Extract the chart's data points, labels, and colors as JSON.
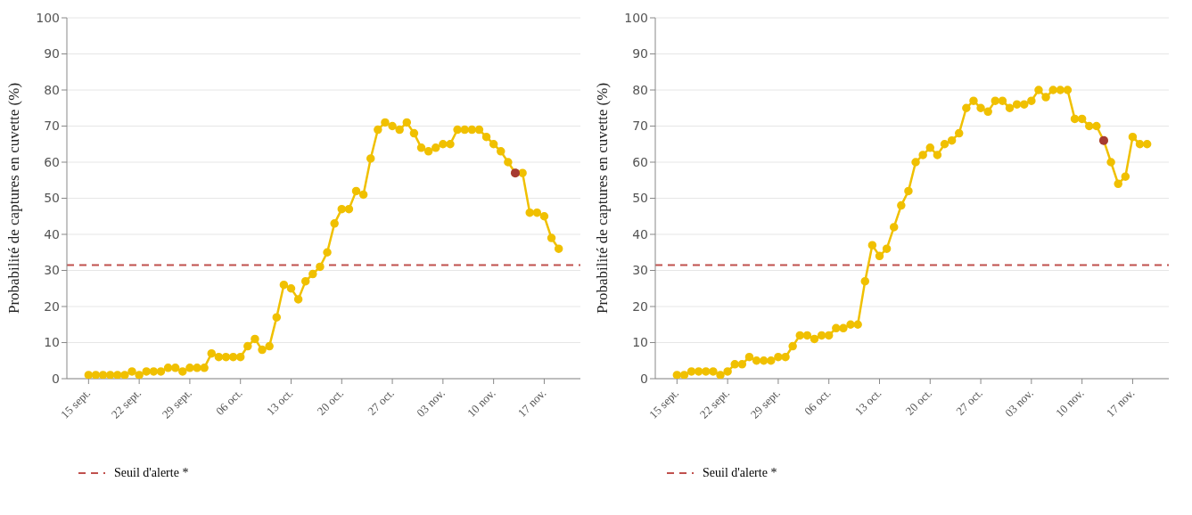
{
  "chart_data": [
    {
      "type": "line",
      "ylabel": "Probabilité de captures en cuvette (%)",
      "x": [
        "--09-15",
        "--09-16",
        "--09-17",
        "--09-18",
        "--09-19",
        "--09-20",
        "--09-21",
        "--09-22",
        "--09-23",
        "--09-24",
        "--09-25",
        "--09-26",
        "--09-27",
        "--09-28",
        "--09-29",
        "--09-30",
        "--10-01",
        "--10-02",
        "--10-03",
        "--10-04",
        "--10-05",
        "--10-06",
        "--10-07",
        "--10-08",
        "--10-09",
        "--10-10",
        "--10-11",
        "--10-12",
        "--10-13",
        "--10-14",
        "--10-15",
        "--10-16",
        "--10-17",
        "--10-18",
        "--10-19",
        "--10-20",
        "--10-21",
        "--10-22",
        "--10-23",
        "--10-24",
        "--10-25",
        "--10-26",
        "--10-27",
        "--10-28",
        "--10-29",
        "--10-30",
        "--10-31",
        "--11-01",
        "--11-02",
        "--11-03",
        "--11-04",
        "--11-05",
        "--11-06",
        "--11-07",
        "--11-08",
        "--11-09",
        "--11-10",
        "--11-11",
        "--11-12",
        "--11-13",
        "--11-14",
        "--11-15",
        "--11-16",
        "--11-17",
        "--11-18",
        "--11-19"
      ],
      "series": [
        {
          "color": "#f0c000",
          "values": [
            1,
            1,
            1,
            1,
            1,
            1,
            2,
            1,
            2,
            2,
            2,
            3,
            3,
            2,
            3,
            3,
            3,
            7,
            6,
            6,
            6,
            6,
            9,
            11,
            8,
            9,
            17,
            26,
            25,
            22,
            27,
            29,
            31,
            35,
            43,
            47,
            47,
            52,
            51,
            61,
            69,
            71,
            70,
            69,
            71,
            68,
            64,
            63,
            64,
            65,
            65,
            69,
            69,
            69,
            69,
            67,
            65,
            63,
            60,
            57,
            57,
            46,
            46,
            45,
            39,
            36
          ]
        },
        {
          "type": "scatter",
          "color": "#a63a32",
          "x": [
            "--11-13"
          ],
          "values": [
            57
          ]
        }
      ],
      "xlim": [
        "--09-12",
        "--11-22"
      ],
      "xticks": [
        {
          "value": "--09-15",
          "label": "15 sept."
        },
        {
          "value": "--09-22",
          "label": "22 sept."
        },
        {
          "value": "--09-29",
          "label": "29 sept."
        },
        {
          "value": "--10-06",
          "label": "06 oct."
        },
        {
          "value": "--10-13",
          "label": "13 oct."
        },
        {
          "value": "--10-20",
          "label": "20 oct."
        },
        {
          "value": "--10-27",
          "label": "27 oct."
        },
        {
          "value": "--11-03",
          "label": "03 nov."
        },
        {
          "value": "--11-10",
          "label": "10 nov."
        },
        {
          "value": "--11-17",
          "label": "17 nov."
        }
      ],
      "ylim": [
        0,
        100
      ],
      "yticks": [
        0,
        10,
        20,
        30,
        40,
        50,
        60,
        70,
        80,
        90,
        100
      ],
      "ref_lines": [
        {
          "axis": "y",
          "value": 31.5,
          "label": "Seuil d'alerte *",
          "color": "#c0504d",
          "line_style": "dashed"
        }
      ],
      "grid": "y",
      "legend": "bottom left",
      "marker": "circle",
      "line_style": "solid"
    },
    {
      "type": "line",
      "ylabel": "Probabilité de captures en cuvette (%)",
      "x": [
        "--09-15",
        "--09-16",
        "--09-17",
        "--09-18",
        "--09-19",
        "--09-20",
        "--09-21",
        "--09-22",
        "--09-23",
        "--09-24",
        "--09-25",
        "--09-26",
        "--09-27",
        "--09-28",
        "--09-29",
        "--09-30",
        "--10-01",
        "--10-02",
        "--10-03",
        "--10-04",
        "--10-05",
        "--10-06",
        "--10-07",
        "--10-08",
        "--10-09",
        "--10-10",
        "--10-11",
        "--10-12",
        "--10-13",
        "--10-14",
        "--10-15",
        "--10-16",
        "--10-17",
        "--10-18",
        "--10-19",
        "--10-20",
        "--10-21",
        "--10-22",
        "--10-23",
        "--10-24",
        "--10-25",
        "--10-26",
        "--10-27",
        "--10-28",
        "--10-29",
        "--10-30",
        "--10-31",
        "--11-01",
        "--11-02",
        "--11-03",
        "--11-04",
        "--11-05",
        "--11-06",
        "--11-07",
        "--11-08",
        "--11-09",
        "--11-10",
        "--11-11",
        "--11-12",
        "--11-13",
        "--11-14",
        "--11-15",
        "--11-16",
        "--11-17",
        "--11-18",
        "--11-19"
      ],
      "series": [
        {
          "color": "#f0c000",
          "values": [
            1,
            1,
            2,
            2,
            2,
            2,
            1,
            2,
            4,
            4,
            6,
            5,
            5,
            5,
            6,
            6,
            9,
            12,
            12,
            11,
            12,
            12,
            14,
            14,
            15,
            15,
            27,
            37,
            34,
            36,
            42,
            48,
            52,
            60,
            62,
            64,
            62,
            65,
            66,
            68,
            75,
            77,
            75,
            74,
            77,
            77,
            75,
            76,
            76,
            77,
            80,
            78,
            80,
            80,
            80,
            72,
            72,
            70,
            70,
            66,
            60,
            54,
            56,
            67,
            65,
            65
          ]
        },
        {
          "type": "scatter",
          "color": "#a63a32",
          "x": [
            "--11-13"
          ],
          "values": [
            66
          ]
        }
      ],
      "xlim": [
        "--09-12",
        "--11-22"
      ],
      "xticks": [
        {
          "value": "--09-15",
          "label": "15 sept."
        },
        {
          "value": "--09-22",
          "label": "22 sept."
        },
        {
          "value": "--09-29",
          "label": "29 sept."
        },
        {
          "value": "--10-06",
          "label": "06 oct."
        },
        {
          "value": "--10-13",
          "label": "13 oct."
        },
        {
          "value": "--10-20",
          "label": "20 oct."
        },
        {
          "value": "--10-27",
          "label": "27 oct."
        },
        {
          "value": "--11-03",
          "label": "03 nov."
        },
        {
          "value": "--11-10",
          "label": "10 nov."
        },
        {
          "value": "--11-17",
          "label": "17 nov."
        }
      ],
      "ylim": [
        0,
        100
      ],
      "yticks": [
        0,
        10,
        20,
        30,
        40,
        50,
        60,
        70,
        80,
        90,
        100
      ],
      "ref_lines": [
        {
          "axis": "y",
          "value": 31.5,
          "label": "Seuil d'alerte *",
          "color": "#c0504d",
          "line_style": "dashed"
        }
      ],
      "grid": "y",
      "legend": "bottom left",
      "marker": "circle",
      "line_style": "solid"
    }
  ]
}
